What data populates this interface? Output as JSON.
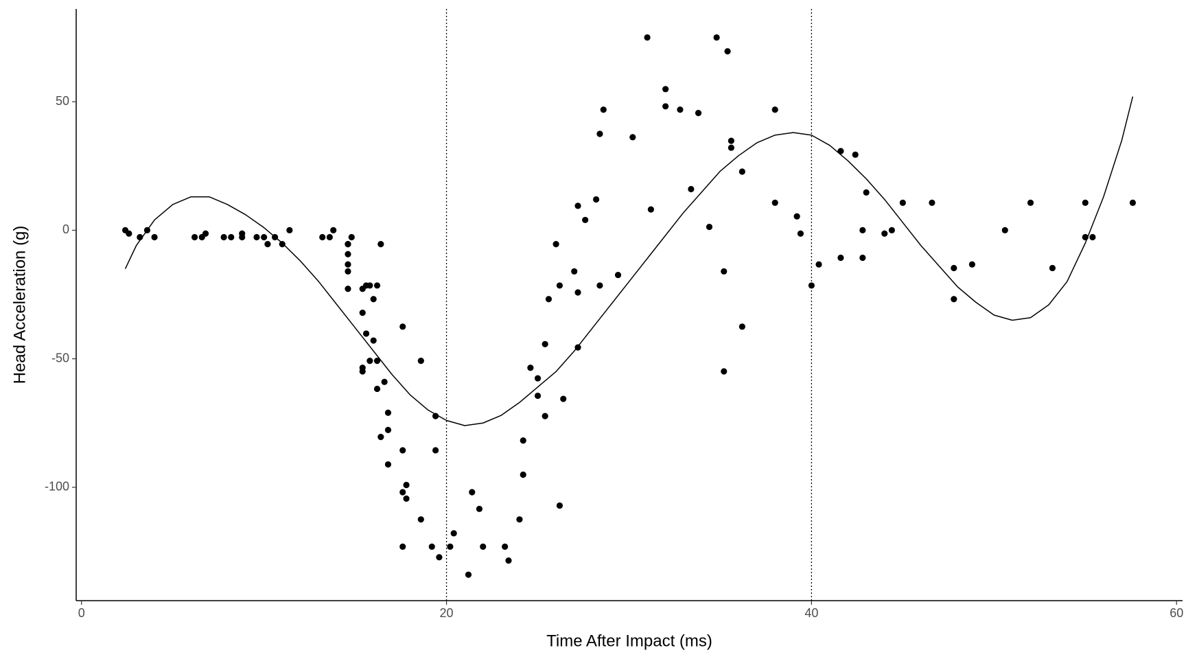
{
  "chart_data": {
    "type": "scatter",
    "xlabel": "Time After Impact (ms)",
    "ylabel": "Head Acceleration (g)",
    "x": [
      2.4,
      2.6,
      3.2,
      3.6,
      4.0,
      6.2,
      6.6,
      6.8,
      7.8,
      8.2,
      8.8,
      8.8,
      9.6,
      10.0,
      10.2,
      10.6,
      11.0,
      11.4,
      13.2,
      13.6,
      13.8,
      14.6,
      14.6,
      14.6,
      14.6,
      14.6,
      14.6,
      14.8,
      15.4,
      15.4,
      15.4,
      15.4,
      15.6,
      15.6,
      15.8,
      15.8,
      16.0,
      16.0,
      16.2,
      16.2,
      16.2,
      16.4,
      16.4,
      16.6,
      16.8,
      16.8,
      16.8,
      17.6,
      17.6,
      17.6,
      17.6,
      17.8,
      17.8,
      18.6,
      18.6,
      19.2,
      19.4,
      19.4,
      19.6,
      20.2,
      20.4,
      21.2,
      21.4,
      21.8,
      22.0,
      23.2,
      23.4,
      24.0,
      24.2,
      24.2,
      24.6,
      25.0,
      25.0,
      25.4,
      25.4,
      25.6,
      26.0,
      26.2,
      26.2,
      26.4,
      27.0,
      27.2,
      27.2,
      27.2,
      27.6,
      28.2,
      28.4,
      28.4,
      28.6,
      29.4,
      30.2,
      31.0,
      31.2,
      32.0,
      32.0,
      32.8,
      33.4,
      33.8,
      34.4,
      34.8,
      35.2,
      35.2,
      35.4,
      35.6,
      35.6,
      36.2,
      36.2,
      38.0,
      38.0,
      39.2,
      39.4,
      40.0,
      40.4,
      41.6,
      41.6,
      42.4,
      42.8,
      42.8,
      43.0,
      44.0,
      44.4,
      45.0,
      46.6,
      47.8,
      47.8,
      48.8,
      50.6,
      52.0,
      53.2,
      55.0,
      55.0,
      55.4,
      57.6
    ],
    "values": [
      0.0,
      -1.3,
      -2.7,
      0.0,
      -2.7,
      -2.7,
      -2.7,
      -1.3,
      -2.7,
      -2.7,
      -1.3,
      -2.7,
      -2.7,
      -2.7,
      -5.4,
      -2.7,
      -5.4,
      0.0,
      -2.7,
      -2.7,
      0.0,
      -13.3,
      -5.4,
      -5.4,
      -9.3,
      -16.0,
      -22.8,
      -2.7,
      -22.8,
      -32.1,
      -53.5,
      -54.9,
      -40.2,
      -21.5,
      -21.5,
      -50.8,
      -42.9,
      -26.8,
      -21.5,
      -50.8,
      -61.7,
      -5.4,
      -80.4,
      -59.0,
      -71.0,
      -91.1,
      -77.7,
      -37.5,
      -85.6,
      -123.1,
      -101.9,
      -99.1,
      -104.4,
      -112.5,
      -50.8,
      -123.1,
      -85.6,
      -72.3,
      -127.2,
      -123.1,
      -117.9,
      -134.0,
      -101.9,
      -108.4,
      -123.1,
      -123.1,
      -128.5,
      -112.5,
      -95.1,
      -81.8,
      -53.5,
      -64.4,
      -57.6,
      -72.3,
      -44.3,
      -26.8,
      -5.4,
      -107.1,
      -21.5,
      -65.6,
      -16.0,
      -45.6,
      -24.2,
      9.5,
      4.0,
      12.0,
      -21.5,
      37.5,
      46.9,
      -17.4,
      36.2,
      75.0,
      8.1,
      54.9,
      48.2,
      46.9,
      16.0,
      45.6,
      1.3,
      75.0,
      -16.0,
      -54.9,
      69.6,
      34.8,
      32.1,
      -37.5,
      22.8,
      46.9,
      10.7,
      5.4,
      -1.3,
      -21.5,
      -13.3,
      30.8,
      -10.7,
      29.4,
      0.0,
      -10.7,
      14.7,
      -1.3,
      0.0,
      10.7,
      10.7,
      -26.8,
      -14.7,
      -13.3,
      0.0,
      10.7,
      -14.7,
      -2.7,
      10.7,
      -2.7,
      10.7
    ],
    "color": "#000000",
    "fit": {
      "x": [
        2.4,
        3,
        4,
        5,
        6,
        7,
        8,
        9,
        10,
        11,
        12,
        13,
        14,
        15,
        16,
        17,
        18,
        19,
        20,
        21,
        22,
        23,
        24,
        25,
        26,
        27,
        28,
        29,
        30,
        31,
        32,
        33,
        34,
        35,
        36,
        37,
        38,
        39,
        40,
        41,
        42,
        43,
        44,
        45,
        46,
        47,
        48,
        49,
        50,
        51,
        52,
        53,
        54,
        55,
        56,
        57,
        57.6
      ],
      "values": [
        -15,
        -6,
        4,
        10,
        13,
        13,
        10,
        6,
        1,
        -5,
        -12,
        -20,
        -29,
        -38,
        -47,
        -56,
        -64,
        -70,
        -74,
        -76,
        -75,
        -72,
        -67,
        -61,
        -55,
        -47,
        -38,
        -29,
        -20,
        -11,
        -2,
        7,
        15,
        23,
        29,
        34,
        37,
        38,
        37,
        33,
        27,
        20,
        12,
        3,
        -6,
        -14,
        -22,
        -28,
        -33,
        -35,
        -34,
        -29,
        -20,
        -5,
        13,
        35,
        52
      ]
    },
    "vlines": [
      20,
      40
    ],
    "xlim": [
      -0.29,
      60.33
    ],
    "ylim": [
      -144.1,
      86.1
    ],
    "xticks": [
      0,
      20,
      40,
      60
    ],
    "yticks": [
      -100,
      -50,
      0,
      50
    ]
  }
}
